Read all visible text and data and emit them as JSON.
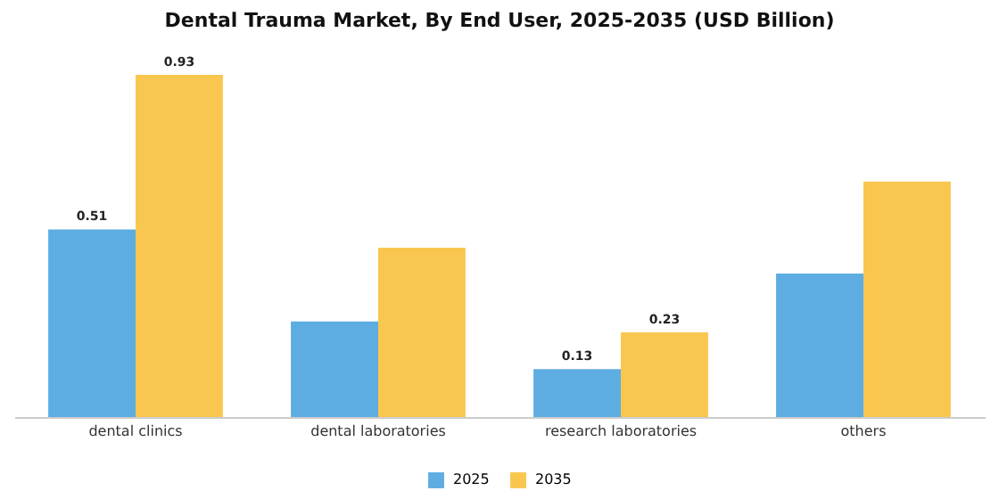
{
  "chart_data": {
    "type": "bar",
    "title": "Dental Trauma Market, By End User, 2025-2035 (USD Billion)",
    "categories": [
      "dental clinics",
      "dental laboratories",
      "research laboratories",
      "others"
    ],
    "legend": "bottom",
    "series": [
      {
        "name": "2025",
        "color": "#5dade2",
        "values": [
          0.51,
          0.26,
          0.13,
          0.39
        ],
        "value_labels": [
          "0.51",
          null,
          "0.13",
          null
        ]
      },
      {
        "name": "2035",
        "color": "#f9c74f",
        "values": [
          0.93,
          0.46,
          0.23,
          0.64
        ],
        "value_labels": [
          "0.93",
          null,
          "0.23",
          null
        ]
      }
    ]
  }
}
